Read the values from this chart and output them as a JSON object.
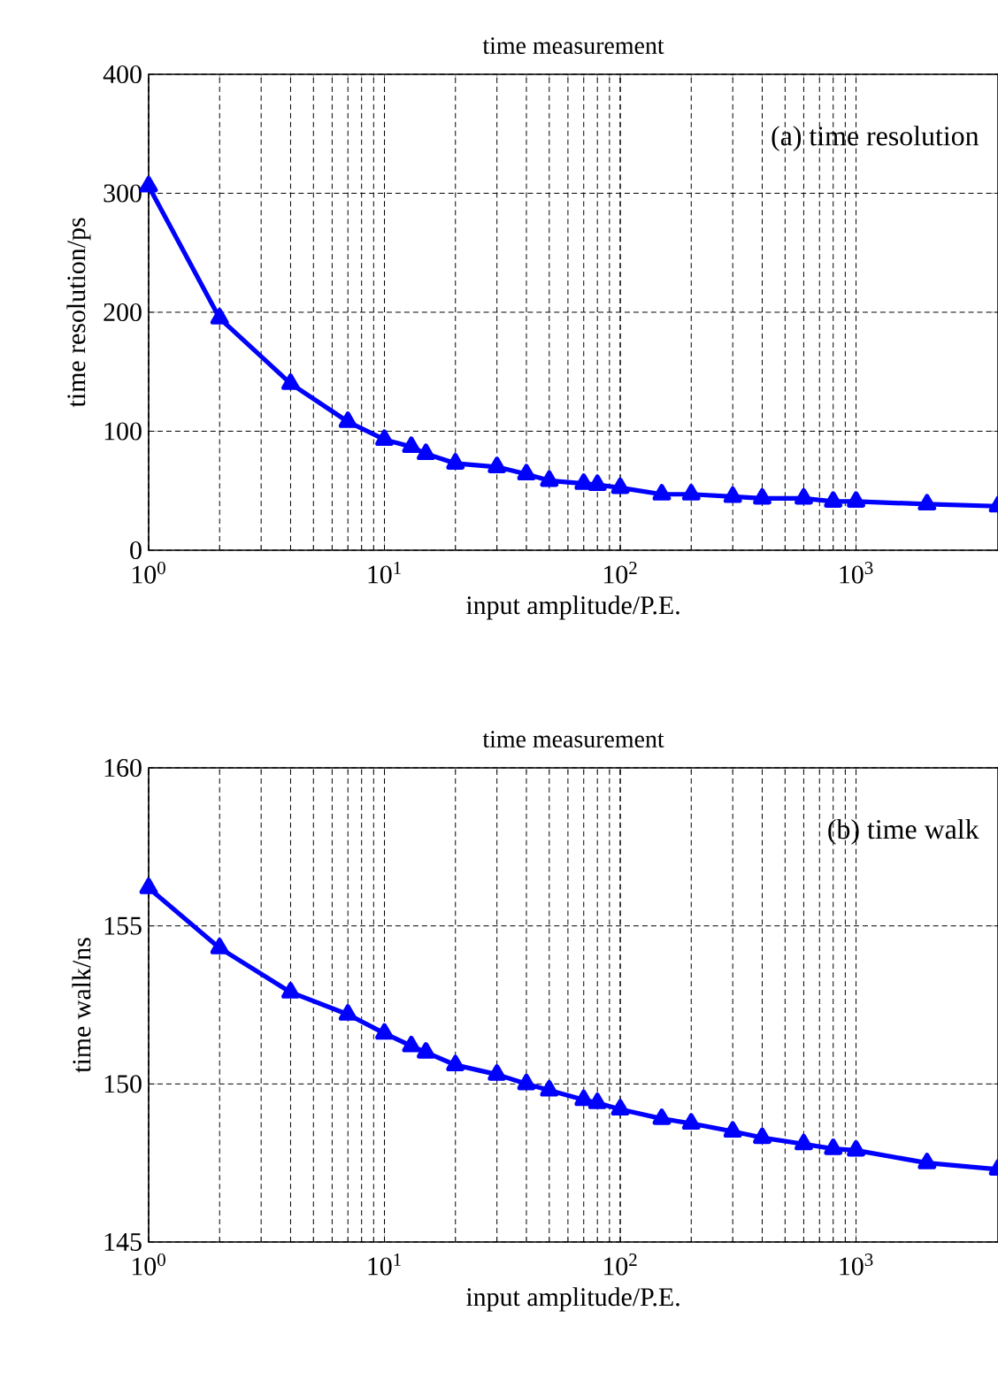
{
  "chart_data": [
    {
      "type": "line",
      "title": "time measurement",
      "xlabel": "input amplitude/P.E.",
      "ylabel": "time resolution/ps",
      "annotations": [
        "(a)  time resolution"
      ],
      "x": [
        1,
        2,
        4,
        7,
        10,
        13,
        15,
        20,
        30,
        40,
        50,
        70,
        80,
        100,
        150,
        200,
        300,
        400,
        600,
        800,
        1000,
        2000,
        4000
      ],
      "series": [
        {
          "color": "#0000ff",
          "values": [
            306,
            195,
            140,
            108,
            93,
            87,
            81,
            73,
            70,
            64,
            58.5,
            56,
            55,
            52.5,
            47,
            47,
            45,
            43.6,
            43.6,
            41,
            41,
            38.7,
            37
          ]
        }
      ],
      "xlim": [
        1,
        4000
      ],
      "ylim": [
        0,
        400
      ],
      "xticks": [
        {
          "value": 1,
          "label": "10$^{0}$"
        },
        {
          "value": 10,
          "label": "10$^{1}$"
        },
        {
          "value": 100,
          "label": "10$^{2}$"
        },
        {
          "value": 1000,
          "label": "10$^{3}$"
        }
      ],
      "yticks": [
        0,
        100,
        200,
        300,
        400
      ],
      "log": "x",
      "grid": true,
      "marker": "triangle",
      "line_style": "solid"
    },
    {
      "type": "line",
      "title": "time measurement",
      "xlabel": "input amplitude/P.E.",
      "ylabel": "time walk/ns",
      "annotations": [
        "(b)  time walk"
      ],
      "x": [
        1,
        2,
        4,
        7,
        10,
        13,
        15,
        20,
        30,
        40,
        50,
        70,
        80,
        100,
        150,
        200,
        300,
        400,
        600,
        800,
        1000,
        2000,
        4000
      ],
      "series": [
        {
          "color": "#0000ff",
          "values": [
            156.2,
            154.3,
            152.9,
            152.2,
            151.6,
            151.2,
            151.0,
            150.6,
            150.3,
            150.0,
            149.8,
            149.5,
            149.4,
            149.2,
            148.9,
            148.75,
            148.5,
            148.3,
            148.1,
            147.95,
            147.9,
            147.5,
            147.3
          ]
        }
      ],
      "xlim": [
        1,
        4000
      ],
      "ylim": [
        145,
        160
      ],
      "xticks": [
        {
          "value": 1,
          "label": "10$^{0}$"
        },
        {
          "value": 10,
          "label": "10$^{1}$"
        },
        {
          "value": 100,
          "label": "10$^{2}$"
        },
        {
          "value": 1000,
          "label": "10$^{3}$"
        }
      ],
      "yticks": [
        145,
        150,
        155,
        160
      ],
      "log": "x",
      "grid": true,
      "marker": "triangle",
      "line_style": "solid"
    }
  ]
}
